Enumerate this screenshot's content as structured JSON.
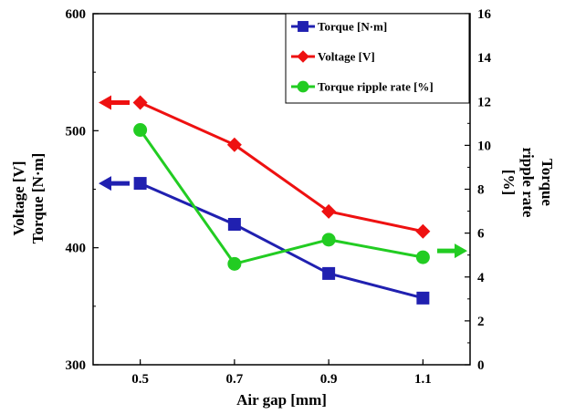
{
  "chart_data": {
    "type": "line",
    "x": [
      0.5,
      0.7,
      0.9,
      1.1
    ],
    "xlim": [
      0.4,
      1.2
    ],
    "x_ticks": [
      "0.5",
      "0.7",
      "0.9",
      "1.1"
    ],
    "xlabel": "Air gap [mm]",
    "ylabel_left": [
      "Voltage [V]",
      "Torque [N·m]"
    ],
    "ylim_left": [
      300,
      600
    ],
    "y_left_ticks": [
      "300",
      "400",
      "500",
      "600"
    ],
    "ylabel_right": [
      "Torque",
      "ripple rate",
      "[%]"
    ],
    "ylim_right": [
      0,
      16
    ],
    "y_right_ticks": [
      "0",
      "2",
      "4",
      "6",
      "8",
      "10",
      "12",
      "14",
      "16"
    ],
    "legend_position": "top-right",
    "grid": false,
    "series": [
      {
        "name": "Torque [N·m]",
        "axis": "left",
        "marker": "square",
        "color": "#2020b0",
        "values": [
          455,
          420,
          378,
          357
        ]
      },
      {
        "name": "Voltage [V]",
        "axis": "left",
        "marker": "diamond",
        "color": "#ee1111",
        "values": [
          524,
          488,
          431,
          414
        ]
      },
      {
        "name": "Torque ripple rate [%]",
        "axis": "right",
        "marker": "circle",
        "color": "#22cc22",
        "values": [
          10.7,
          4.6,
          5.7,
          4.9
        ]
      }
    ]
  }
}
